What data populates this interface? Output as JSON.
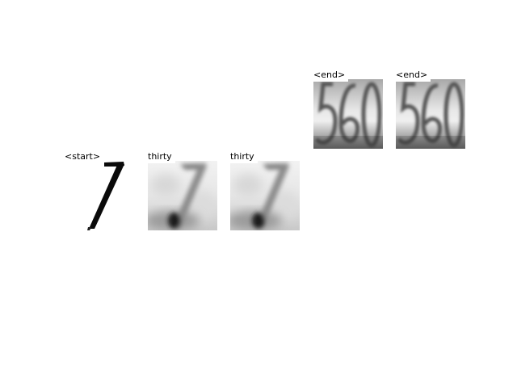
{
  "figure": {
    "tiles": [
      {
        "label": "<start>",
        "glyph": "7",
        "style": "clean-digit"
      },
      {
        "label": "thirty",
        "glyph": "7",
        "style": "blurred-digit"
      },
      {
        "label": "thirty",
        "glyph": "7",
        "style": "blurred-digit"
      },
      {
        "label": "<end>",
        "glyph": "560",
        "style": "blurred-digits"
      },
      {
        "label": "<end>",
        "glyph": "560",
        "style": "blurred-digits"
      }
    ]
  }
}
